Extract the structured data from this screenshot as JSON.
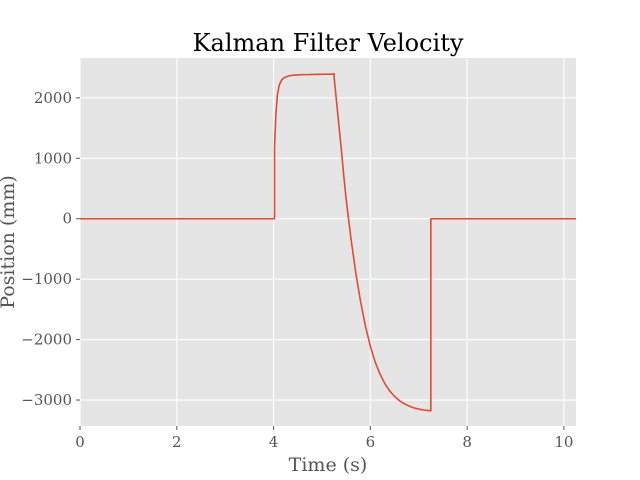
{
  "chart_data": {
    "type": "line",
    "title": "Kalman Filter Velocity",
    "xlabel": "Time (s)",
    "ylabel": "Position (mm)",
    "xlim": [
      0,
      10.25
    ],
    "ylim": [
      -3430,
      2660
    ],
    "x_ticks": [
      0,
      2,
      4,
      6,
      8,
      10
    ],
    "y_ticks": [
      2000,
      1000,
      0,
      -1000,
      -2000,
      -3000
    ],
    "x_tick_labels": [
      "0",
      "2",
      "4",
      "6",
      "8",
      "10"
    ],
    "y_tick_labels": [
      "2000",
      "1000",
      "0",
      "−1000",
      "−2000",
      "−3000"
    ],
    "grid": true,
    "series": [
      {
        "color": "#e24a33",
        "x": [
          0,
          4.02,
          4.02,
          4.05,
          4.08,
          4.12,
          4.17,
          4.22,
          4.3,
          4.4,
          4.5,
          4.6,
          4.7,
          4.8,
          4.9,
          5.0,
          5.1,
          5.2,
          5.25,
          5.25,
          5.3,
          5.35,
          5.4,
          5.45,
          5.5,
          5.6,
          5.7,
          5.8,
          5.9,
          6.0,
          6.1,
          6.2,
          6.3,
          6.4,
          6.5,
          6.6,
          6.7,
          6.8,
          6.9,
          7.0,
          7.1,
          7.2,
          7.25,
          7.25,
          10.25
        ],
        "y": [
          0,
          0,
          1200,
          1750,
          2050,
          2220,
          2300,
          2335,
          2360,
          2375,
          2380,
          2385,
          2385,
          2388,
          2390,
          2390,
          2392,
          2392,
          2400,
          2350,
          1950,
          1550,
          1150,
          720,
          320,
          -330,
          -900,
          -1380,
          -1780,
          -2110,
          -2370,
          -2570,
          -2730,
          -2850,
          -2940,
          -3010,
          -3060,
          -3100,
          -3130,
          -3150,
          -3165,
          -3175,
          -3180,
          0,
          0
        ]
      }
    ]
  }
}
